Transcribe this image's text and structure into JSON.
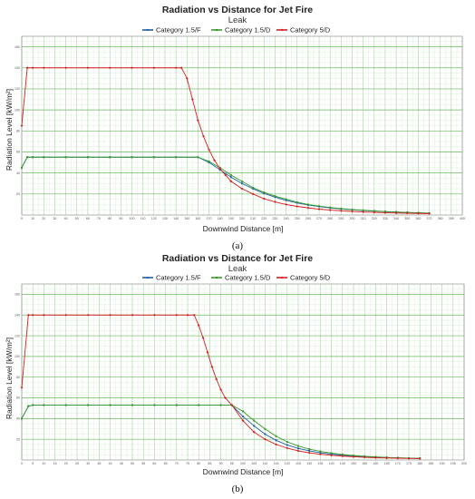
{
  "chart_data": [
    {
      "type": "line",
      "panel_label": "(a)",
      "title": "Radiation vs Distance for Jet Fire",
      "subtitle": "Leak",
      "xlabel": "Downwind Distance [m]",
      "ylabel": "Radiation Level [kW/m²]",
      "xlim": [
        0,
        400
      ],
      "ylim": [
        0,
        170
      ],
      "x_ticks": [
        0,
        10,
        20,
        30,
        40,
        50,
        60,
        70,
        80,
        90,
        100,
        110,
        120,
        130,
        140,
        150,
        160,
        170,
        180,
        190,
        200,
        210,
        220,
        230,
        240,
        250,
        260,
        270,
        280,
        290,
        300,
        310,
        320,
        330,
        340,
        350,
        360,
        370,
        380,
        390,
        400
      ],
      "y_ticks": [
        20,
        40,
        60,
        80,
        100,
        120,
        140,
        160
      ],
      "grid": true,
      "legend": "top",
      "series": [
        {
          "name": "Category 1.5/F",
          "color": "#1f5fa8",
          "marker": "circle",
          "x": [
            0,
            5,
            10,
            20,
            40,
            60,
            80,
            100,
            120,
            140,
            160,
            170,
            180,
            190,
            200,
            210,
            220,
            230,
            240,
            250,
            260,
            270,
            280,
            290,
            300,
            310,
            320,
            330,
            340,
            350,
            360,
            370
          ],
          "y": [
            45,
            55,
            55,
            55,
            55,
            55,
            55,
            55,
            55,
            55,
            55,
            50,
            43,
            36,
            30,
            25,
            20.5,
            17,
            14,
            11.5,
            9.5,
            8,
            6.8,
            5.8,
            5,
            4.3,
            3.7,
            3.2,
            2.8,
            2.4,
            2.1,
            1.8
          ]
        },
        {
          "name": "Category 1.5/D",
          "color": "#3a9a2e",
          "marker": "square",
          "x": [
            0,
            5,
            10,
            20,
            40,
            60,
            80,
            100,
            120,
            140,
            160,
            170,
            180,
            190,
            200,
            210,
            220,
            230,
            240,
            250,
            260,
            270,
            280,
            290,
            300,
            310,
            320,
            330,
            340,
            350,
            360,
            370
          ],
          "y": [
            45,
            55,
            55,
            55,
            55,
            55,
            55,
            55,
            55,
            55,
            55,
            51,
            45,
            38,
            32,
            26,
            21.5,
            18,
            15,
            12.2,
            10,
            8.5,
            7.2,
            6.1,
            5.2,
            4.5,
            3.9,
            3.3,
            2.9,
            2.5,
            2.1,
            1.8
          ]
        },
        {
          "name": "Category 5/D",
          "color": "#d22020",
          "marker": "diamond",
          "x": [
            0,
            5,
            10,
            20,
            40,
            60,
            80,
            100,
            120,
            140,
            145,
            150,
            155,
            160,
            165,
            170,
            175,
            180,
            185,
            190,
            200,
            210,
            220,
            230,
            240,
            250,
            260,
            270,
            280,
            290,
            300,
            310,
            320,
            330,
            340,
            350,
            360,
            370
          ],
          "y": [
            85,
            140,
            140,
            140,
            140,
            140,
            140,
            140,
            140,
            140,
            140,
            130,
            110,
            90,
            75,
            62,
            52,
            44,
            38,
            32,
            25,
            20,
            15.5,
            12.5,
            10,
            8.2,
            6.8,
            5.6,
            4.7,
            4,
            3.4,
            2.9,
            2.5,
            2.2,
            1.9,
            1.7,
            1.5,
            1.3
          ]
        }
      ]
    },
    {
      "type": "line",
      "panel_label": "(b)",
      "title": "Radiation vs Distance for Jet Fire",
      "subtitle": "Leak",
      "xlabel": "Downwind Distance [m]",
      "ylabel": "Radiation Level [kW/m²]",
      "xlim": [
        0,
        200
      ],
      "ylim": [
        0,
        170
      ],
      "x_ticks": [
        0,
        5,
        10,
        15,
        20,
        25,
        30,
        35,
        40,
        45,
        50,
        55,
        60,
        65,
        70,
        75,
        80,
        85,
        90,
        95,
        100,
        105,
        110,
        115,
        120,
        125,
        130,
        135,
        140,
        145,
        150,
        155,
        160,
        165,
        170,
        175,
        180,
        185,
        190,
        195,
        200
      ],
      "y_ticks": [
        20,
        40,
        60,
        80,
        100,
        120,
        140,
        160
      ],
      "grid": true,
      "legend": "top",
      "series": [
        {
          "name": "Category 1.5/F",
          "color": "#1f5fa8",
          "marker": "circle",
          "x": [
            0,
            3,
            5,
            10,
            20,
            30,
            40,
            50,
            60,
            70,
            80,
            90,
            95,
            100,
            105,
            110,
            115,
            120,
            125,
            130,
            135,
            140,
            145,
            150,
            155,
            160,
            165,
            170,
            175,
            180
          ],
          "y": [
            40,
            52,
            53,
            53,
            53,
            53,
            53,
            53,
            53,
            53,
            53,
            53,
            53,
            42,
            33,
            25,
            19,
            14.5,
            11.2,
            8.8,
            7,
            5.6,
            4.6,
            3.8,
            3.2,
            2.7,
            2.3,
            2,
            1.8,
            1.6
          ]
        },
        {
          "name": "Category 1.5/D",
          "color": "#3a9a2e",
          "marker": "square",
          "x": [
            0,
            3,
            5,
            10,
            20,
            30,
            40,
            50,
            60,
            70,
            80,
            90,
            95,
            100,
            105,
            110,
            115,
            120,
            125,
            130,
            135,
            140,
            145,
            150,
            155,
            160,
            165,
            170,
            175,
            180
          ],
          "y": [
            40,
            52,
            53,
            53,
            53,
            53,
            53,
            53,
            53,
            53,
            53,
            53,
            53,
            47,
            38,
            30,
            23,
            17.5,
            13.5,
            10.5,
            8.3,
            6.6,
            5.3,
            4.3,
            3.6,
            3,
            2.5,
            2.1,
            1.8,
            1.6
          ]
        },
        {
          "name": "Category 5/D",
          "color": "#d22020",
          "marker": "diamond",
          "x": [
            0,
            3,
            5,
            10,
            20,
            30,
            40,
            50,
            60,
            70,
            75,
            78,
            80,
            82,
            84,
            86,
            88,
            90,
            92,
            95,
            100,
            105,
            110,
            115,
            120,
            125,
            130,
            135,
            140,
            145,
            150,
            155,
            160,
            165,
            170,
            175,
            180
          ],
          "y": [
            70,
            140,
            140,
            140,
            140,
            140,
            140,
            140,
            140,
            140,
            140,
            140,
            130,
            118,
            104,
            90,
            78,
            68,
            60,
            53,
            38,
            27,
            20,
            15,
            11.5,
            8.8,
            6.9,
            5.5,
            4.5,
            3.7,
            3.1,
            2.6,
            2.2,
            1.9,
            1.7,
            1.5,
            1.3
          ]
        }
      ]
    }
  ]
}
